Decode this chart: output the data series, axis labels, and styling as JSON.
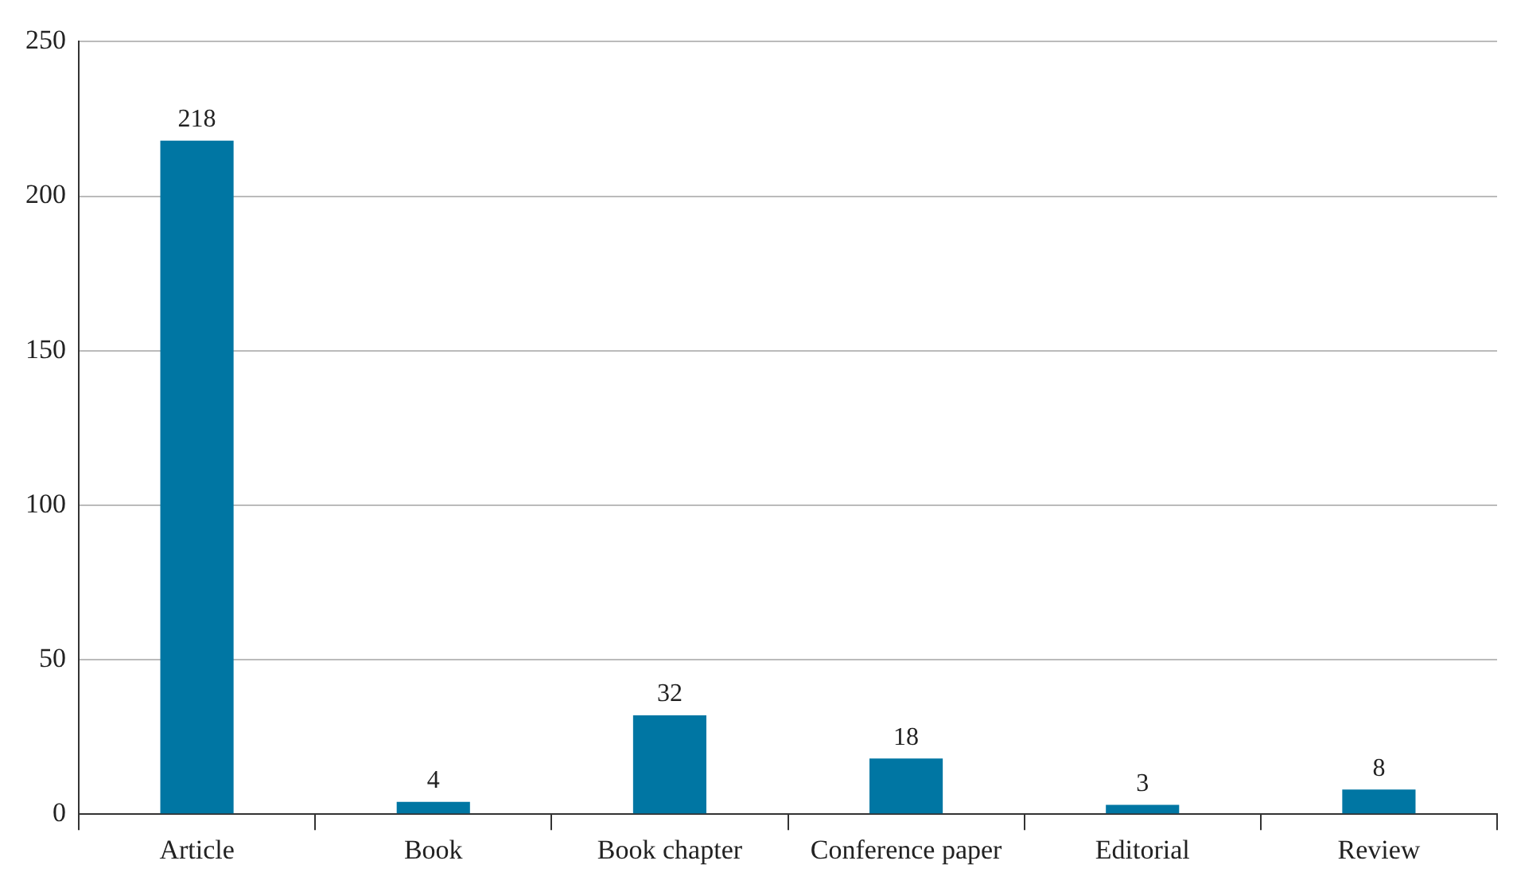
{
  "chart_data": {
    "type": "bar",
    "categories": [
      "Article",
      "Book",
      "Book chapter",
      "Conference paper",
      "Editorial",
      "Review"
    ],
    "values": [
      218,
      4,
      32,
      18,
      3,
      8
    ],
    "color": "#0076a3",
    "ylim": [
      0,
      250
    ],
    "yticks": [
      0,
      50,
      100,
      150,
      200,
      250
    ],
    "grid": "y",
    "data_labels": true,
    "legend": false
  }
}
